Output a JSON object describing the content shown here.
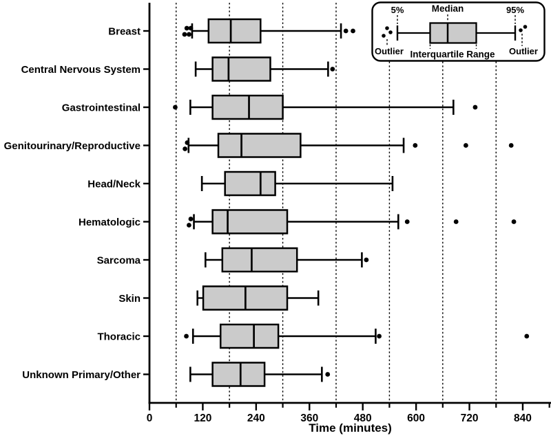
{
  "chart_data": {
    "type": "boxplot-horizontal",
    "title": "",
    "xlabel": "Time (minutes)",
    "xlim": [
      0,
      905
    ],
    "x_ticks_major": [
      0,
      120,
      240,
      360,
      480,
      600,
      720,
      840
    ],
    "x_ticks_minor": [
      60,
      180,
      300,
      420,
      540,
      660,
      780,
      900
    ],
    "gridlines_x": [
      60,
      180,
      300,
      420,
      540,
      660,
      780
    ],
    "grid_style": "dashed-vertical",
    "legend_position": "top-right",
    "categories": [
      "Breast",
      "Central Nervous System",
      "Gastrointestinal",
      "Genitourinary/Reproductive",
      "Head/Neck",
      "Hematologic",
      "Sarcoma",
      "Skin",
      "Thoracic",
      "Unknown Primary/Other"
    ],
    "series": [
      {
        "category": "Breast",
        "whisker_low": 96,
        "q1": 133,
        "median": 183,
        "q3": 250,
        "whisker_high": 431,
        "outliers_low": [
          79,
          84,
          89,
          93
        ],
        "outliers_high": [
          442,
          458
        ]
      },
      {
        "category": "Central Nervous System",
        "whisker_low": 104,
        "q1": 142,
        "median": 178,
        "q3": 272,
        "whisker_high": 402,
        "outliers_low": [],
        "outliers_high": [
          412
        ]
      },
      {
        "category": "Gastrointestinal",
        "whisker_low": 92,
        "q1": 142,
        "median": 224,
        "q3": 300,
        "whisker_high": 684,
        "outliers_low": [
          58
        ],
        "outliers_high": [
          733
        ]
      },
      {
        "category": "Genitourinary/Reproductive",
        "whisker_low": 88,
        "q1": 155,
        "median": 207,
        "q3": 340,
        "whisker_high": 572,
        "outliers_low": [
          80,
          85
        ],
        "outliers_high": [
          598,
          712,
          814
        ]
      },
      {
        "category": "Head/Neck",
        "whisker_low": 118,
        "q1": 170,
        "median": 250,
        "q3": 283,
        "whisker_high": 547,
        "outliers_low": [],
        "outliers_high": []
      },
      {
        "category": "Hematologic",
        "whisker_low": 100,
        "q1": 142,
        "median": 176,
        "q3": 310,
        "whisker_high": 560,
        "outliers_low": [
          89,
          93
        ],
        "outliers_high": [
          580,
          690,
          820
        ]
      },
      {
        "category": "Sarcoma",
        "whisker_low": 126,
        "q1": 164,
        "median": 230,
        "q3": 332,
        "whisker_high": 478,
        "outliers_low": [],
        "outliers_high": [
          488
        ]
      },
      {
        "category": "Skin",
        "whisker_low": 108,
        "q1": 121,
        "median": 216,
        "q3": 310,
        "whisker_high": 380,
        "outliers_low": [],
        "outliers_high": []
      },
      {
        "category": "Thoracic",
        "whisker_low": 98,
        "q1": 160,
        "median": 235,
        "q3": 290,
        "whisker_high": 509,
        "outliers_low": [
          83
        ],
        "outliers_high": [
          517,
          849
        ]
      },
      {
        "category": "Unknown Primary/Other",
        "whisker_low": 92,
        "q1": 142,
        "median": 205,
        "q3": 259,
        "whisker_high": 388,
        "outliers_low": [],
        "outliers_high": [
          401
        ]
      }
    ],
    "legend": {
      "p5": "5%",
      "median": "Median",
      "p95": "95%",
      "outlier_left": "Outlier",
      "iqr": "Interquartile Range",
      "outlier_right": "Outlier"
    },
    "colors": {
      "box_fill": "#cbcbcb",
      "stroke": "#000000",
      "background": "#ffffff"
    }
  }
}
